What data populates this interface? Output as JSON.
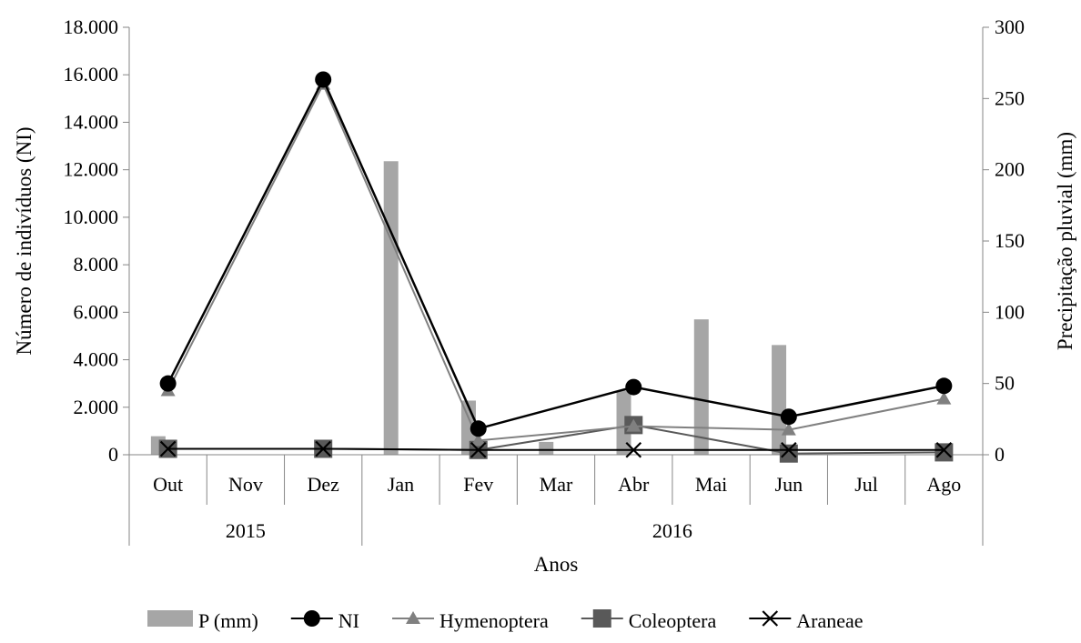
{
  "chart_data": {
    "type": "bar",
    "title": "",
    "xlabel": "Anos",
    "ylabel": "Número de indivíduos (NI)",
    "y2label": "Precipitação pluvial (mm)",
    "categories": [
      "Out",
      "Nov",
      "Dez",
      "Jan",
      "Fev",
      "Mar",
      "Abr",
      "Mai",
      "Jun",
      "Jul",
      "Ago"
    ],
    "year_groups": [
      {
        "label": "2015",
        "from": "Out",
        "to": "Dez"
      },
      {
        "label": "2016",
        "from": "Jan",
        "to": "Ago"
      }
    ],
    "ylim": [
      0,
      18000
    ],
    "y2lim": [
      0,
      300
    ],
    "y_ticks": [
      "0",
      "2.000",
      "4.000",
      "6.000",
      "8.000",
      "10.000",
      "12.000",
      "14.000",
      "16.000",
      "18.000"
    ],
    "y2_ticks": [
      "0",
      "50",
      "100",
      "150",
      "200",
      "250",
      "300"
    ],
    "grid": false,
    "legend_position": "bottom",
    "series": [
      {
        "name": "P (mm)",
        "kind": "bar",
        "axis": "right",
        "color": "#a6a6a6",
        "values": [
          13,
          null,
          null,
          206,
          38,
          9,
          45,
          95,
          77,
          null,
          null
        ]
      },
      {
        "name": "NI",
        "kind": "line",
        "marker": "circle",
        "axis": "left",
        "color": "#000000",
        "values": [
          3000,
          null,
          15800,
          null,
          1100,
          null,
          2850,
          null,
          1600,
          null,
          2900
        ]
      },
      {
        "name": "Hymenoptera",
        "kind": "line",
        "marker": "triangle",
        "axis": "left",
        "color": "#808080",
        "values": [
          2700,
          null,
          15600,
          null,
          600,
          null,
          1200,
          null,
          1050,
          null,
          2350
        ]
      },
      {
        "name": "Coleoptera",
        "kind": "line",
        "marker": "square",
        "axis": "left",
        "color": "#595959",
        "values": [
          250,
          null,
          250,
          null,
          200,
          null,
          1250,
          null,
          50,
          null,
          100
        ]
      },
      {
        "name": "Araneae",
        "kind": "line",
        "marker": "x",
        "axis": "left",
        "color": "#000000",
        "values": [
          250,
          null,
          250,
          null,
          200,
          null,
          200,
          null,
          200,
          null,
          200
        ]
      }
    ]
  }
}
